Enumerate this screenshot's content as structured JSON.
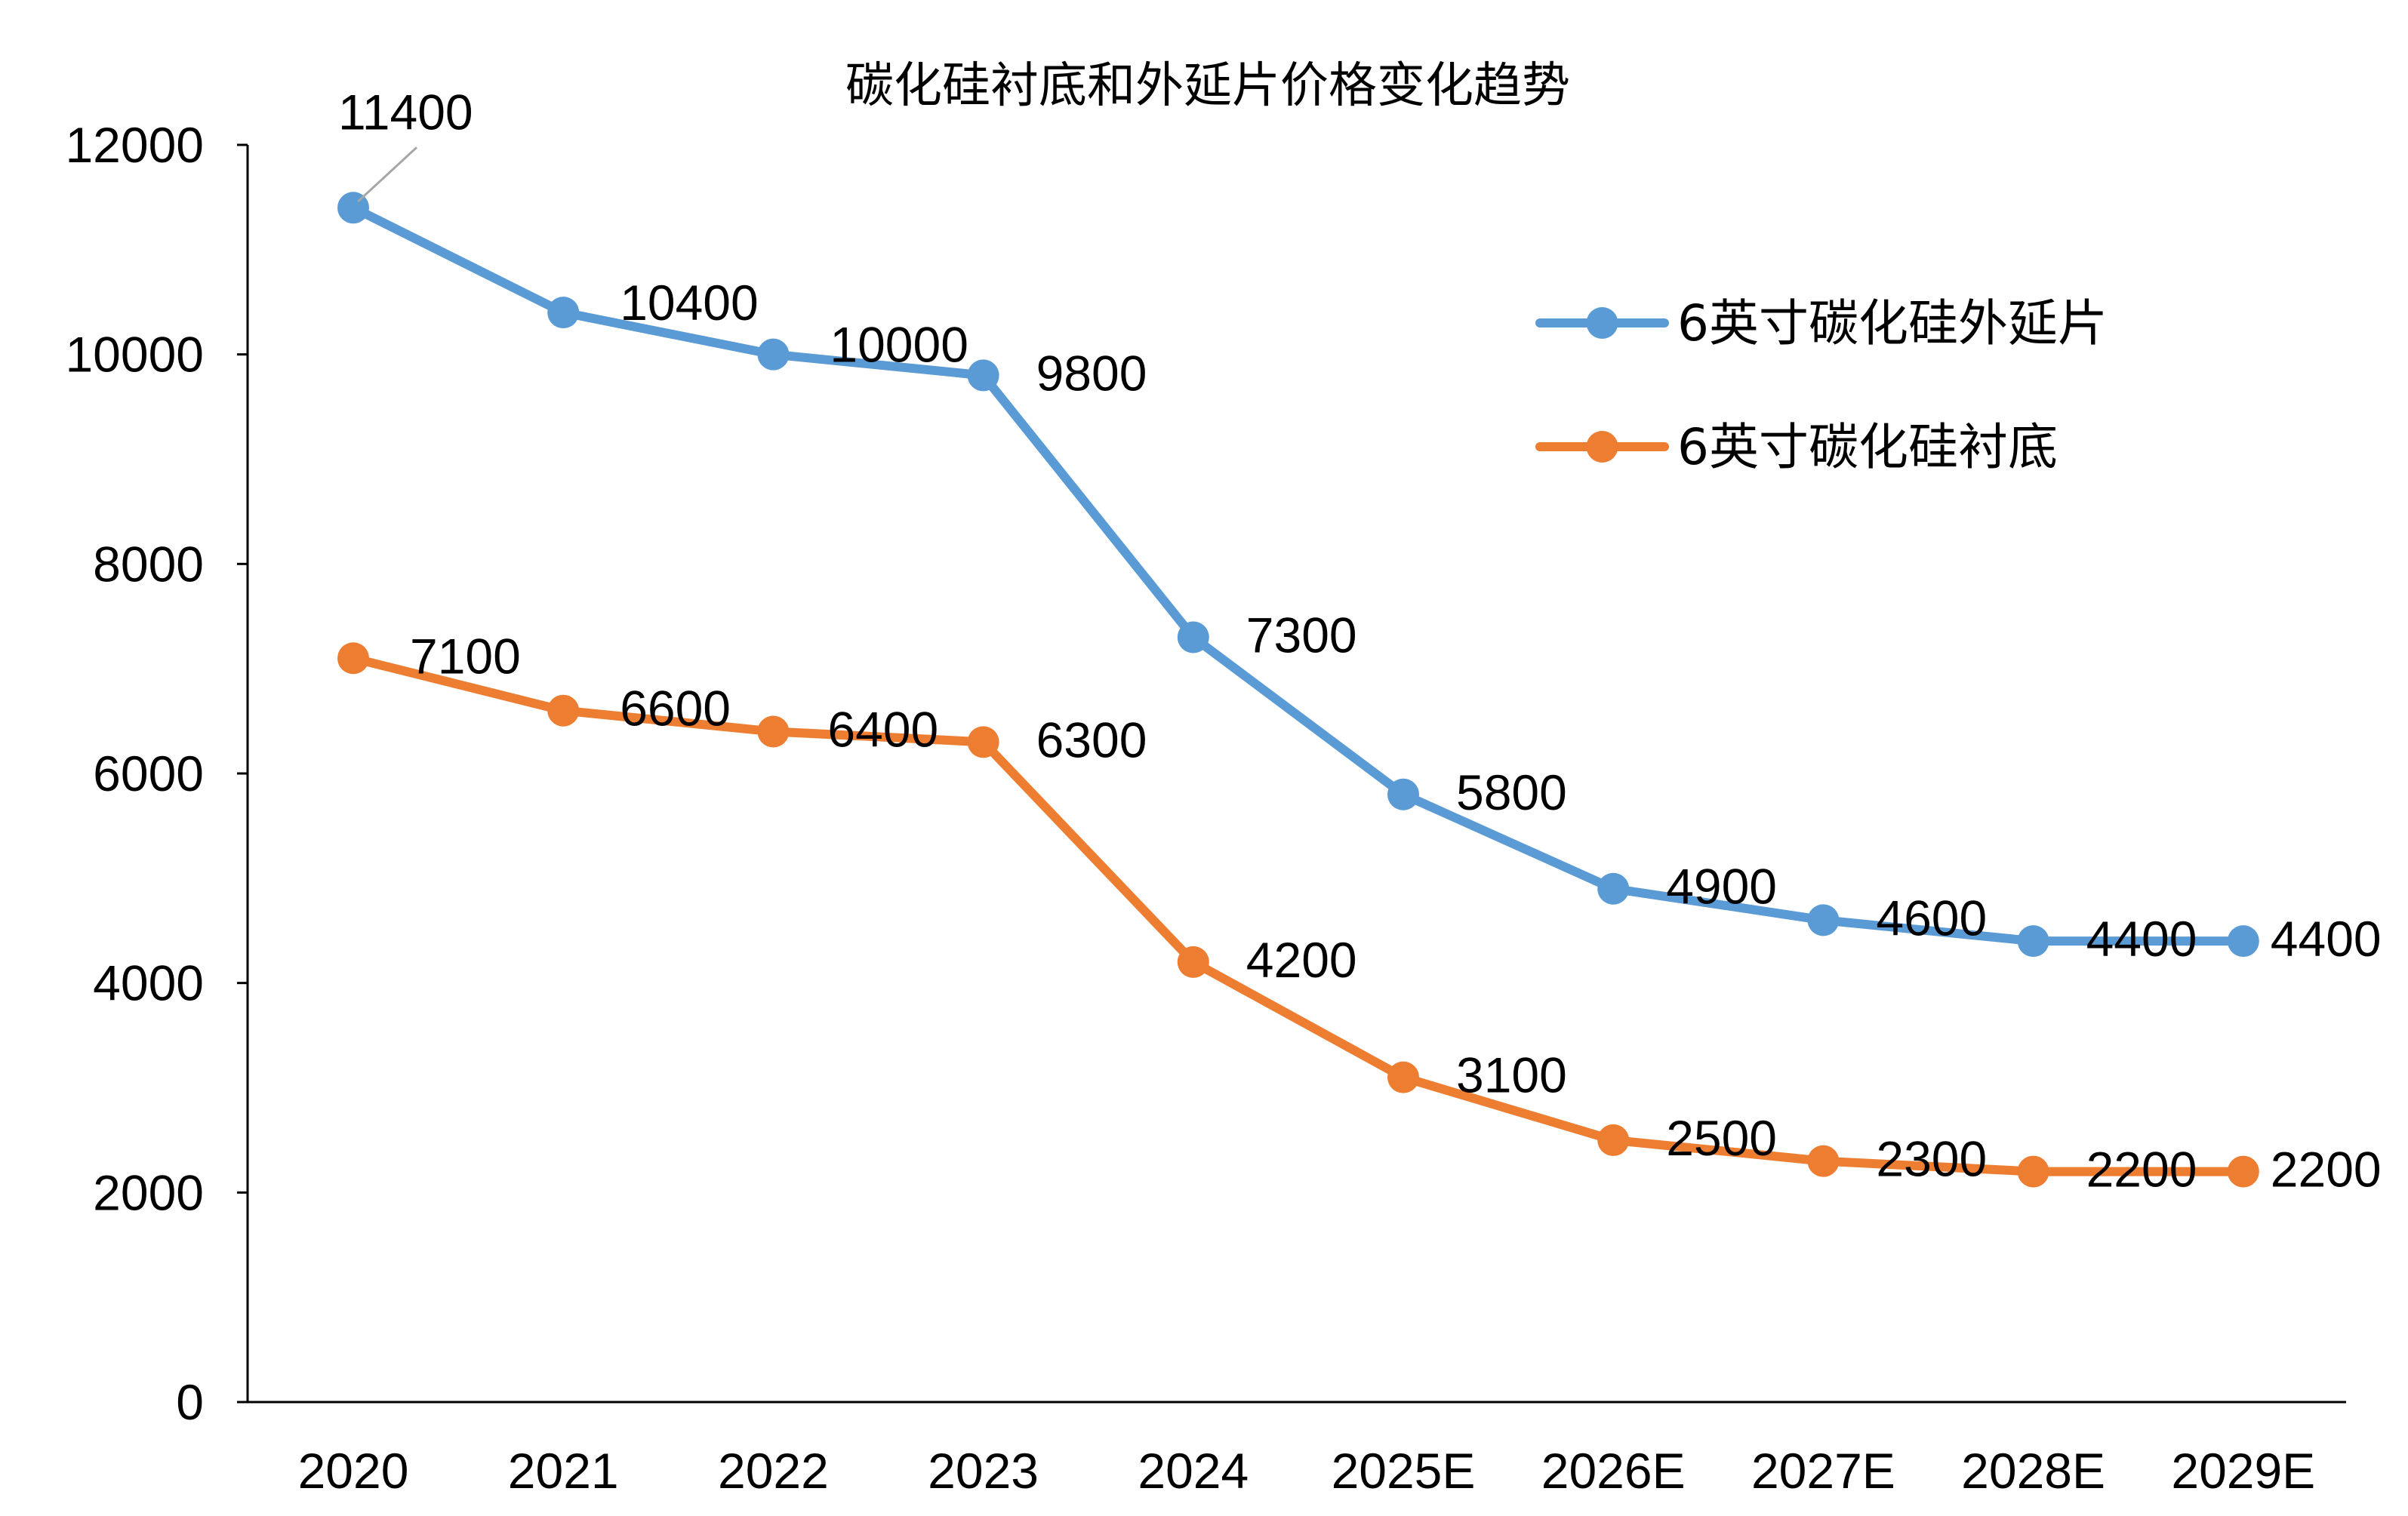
{
  "chart_data": {
    "type": "line",
    "title": "碳化硅衬底和外延片价格变化趋势",
    "xlabel": "",
    "ylabel": "",
    "categories": [
      "2020",
      "2021",
      "2022",
      "2023",
      "2024",
      "2025E",
      "2026E",
      "2027E",
      "2028E",
      "2029E"
    ],
    "yticks": [
      "0",
      "2000",
      "4000",
      "6000",
      "8000",
      "10000",
      "12000"
    ],
    "ylim": [
      0,
      12000
    ],
    "grid": false,
    "legend_position": "upper-right",
    "series": [
      {
        "name": "6英寸碳化硅外延片",
        "color": "#5B9BD5",
        "values": [
          11400,
          10400,
          10000,
          9800,
          7300,
          5800,
          4900,
          4600,
          4400,
          4400
        ],
        "labels": [
          "11400",
          "10400",
          "10000",
          "9800",
          "7300",
          "5800",
          "4900",
          "4600",
          "4400",
          "4400"
        ]
      },
      {
        "name": "6英寸碳化硅衬底",
        "color": "#ED7D31",
        "values": [
          7100,
          6600,
          6400,
          6300,
          4200,
          3100,
          2500,
          2300,
          2200,
          2200
        ],
        "labels": [
          "7100",
          "6600",
          "6400",
          "6300",
          "4200",
          "3100",
          "2500",
          "2300",
          "2200",
          "2200"
        ]
      }
    ]
  }
}
